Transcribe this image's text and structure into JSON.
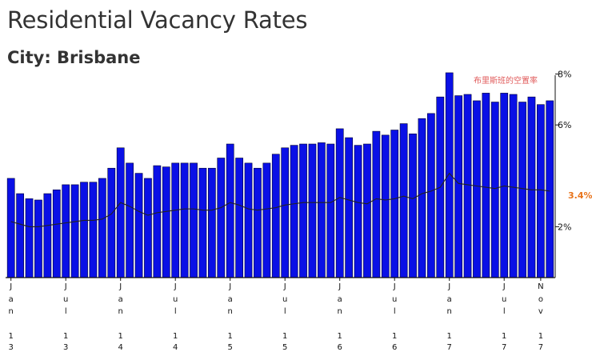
{
  "header": {
    "title": "Residential Vacancy Rates",
    "subtitle": "City: Brisbane"
  },
  "chart_data": {
    "type": "bar",
    "title": "Residential Vacancy Rates",
    "subtitle": "City: Brisbane",
    "annotation": "布里斯班的空置率",
    "end_label": "3.4%",
    "bar_color": "#0a10e6",
    "line_color": "#222222",
    "end_label_color": "#e8731a",
    "annotation_color": "#e05a5a",
    "ylim": [
      0,
      8.3
    ],
    "y_ticks": [
      {
        "value": 2,
        "label": "2%"
      },
      {
        "value": 6,
        "label": "6%"
      },
      {
        "value": 8,
        "label": "8%"
      }
    ],
    "x_ticks": [
      {
        "index": 0,
        "label": [
          "J",
          "a",
          "n",
          "",
          "1",
          "3"
        ]
      },
      {
        "index": 6,
        "label": [
          "J",
          "u",
          "l",
          "",
          "1",
          "3"
        ]
      },
      {
        "index": 12,
        "label": [
          "J",
          "a",
          "n",
          "",
          "1",
          "4"
        ]
      },
      {
        "index": 18,
        "label": [
          "J",
          "u",
          "l",
          "",
          "1",
          "4"
        ]
      },
      {
        "index": 24,
        "label": [
          "J",
          "a",
          "n",
          "",
          "1",
          "5"
        ]
      },
      {
        "index": 30,
        "label": [
          "J",
          "u",
          "l",
          "",
          "1",
          "5"
        ]
      },
      {
        "index": 36,
        "label": [
          "J",
          "a",
          "n",
          "",
          "1",
          "6"
        ]
      },
      {
        "index": 42,
        "label": [
          "J",
          "u",
          "l",
          "",
          "1",
          "6"
        ]
      },
      {
        "index": 48,
        "label": [
          "J",
          "a",
          "n",
          "",
          "1",
          "7"
        ]
      },
      {
        "index": 54,
        "label": [
          "J",
          "u",
          "l",
          "",
          "1",
          "7"
        ]
      },
      {
        "index": 58,
        "label": [
          "N",
          "o",
          "v",
          "",
          "1",
          "7"
        ]
      }
    ],
    "series": [
      {
        "type": "bar",
        "values": [
          3.9,
          3.3,
          3.1,
          3.05,
          3.3,
          3.45,
          3.65,
          3.65,
          3.75,
          3.75,
          3.9,
          4.3,
          5.1,
          4.5,
          4.1,
          3.9,
          4.4,
          4.35,
          4.5,
          4.5,
          4.5,
          4.3,
          4.3,
          4.7,
          5.25,
          4.7,
          4.5,
          4.3,
          4.5,
          4.85,
          5.1,
          5.2,
          5.25,
          5.25,
          5.3,
          5.25,
          5.85,
          5.5,
          5.2,
          5.25,
          5.75,
          5.6,
          5.8,
          6.05,
          5.65,
          6.25,
          6.45,
          7.1,
          8.05,
          7.15,
          7.2,
          6.95,
          7.25,
          6.9,
          7.25,
          7.2,
          6.9,
          7.1,
          6.8,
          6.95
        ]
      },
      {
        "type": "line",
        "values": [
          2.2,
          2.1,
          2.0,
          2.0,
          2.05,
          2.1,
          2.15,
          2.2,
          2.25,
          2.25,
          2.3,
          2.5,
          2.95,
          2.8,
          2.6,
          2.45,
          2.55,
          2.6,
          2.65,
          2.7,
          2.7,
          2.65,
          2.65,
          2.75,
          2.95,
          2.85,
          2.7,
          2.65,
          2.7,
          2.75,
          2.85,
          2.9,
          2.95,
          2.95,
          2.95,
          2.95,
          3.15,
          3.05,
          2.95,
          2.9,
          3.1,
          3.05,
          3.1,
          3.2,
          3.1,
          3.3,
          3.4,
          3.55,
          4.1,
          3.7,
          3.65,
          3.6,
          3.55,
          3.5,
          3.6,
          3.55,
          3.5,
          3.45,
          3.45,
          3.4
        ]
      }
    ]
  }
}
